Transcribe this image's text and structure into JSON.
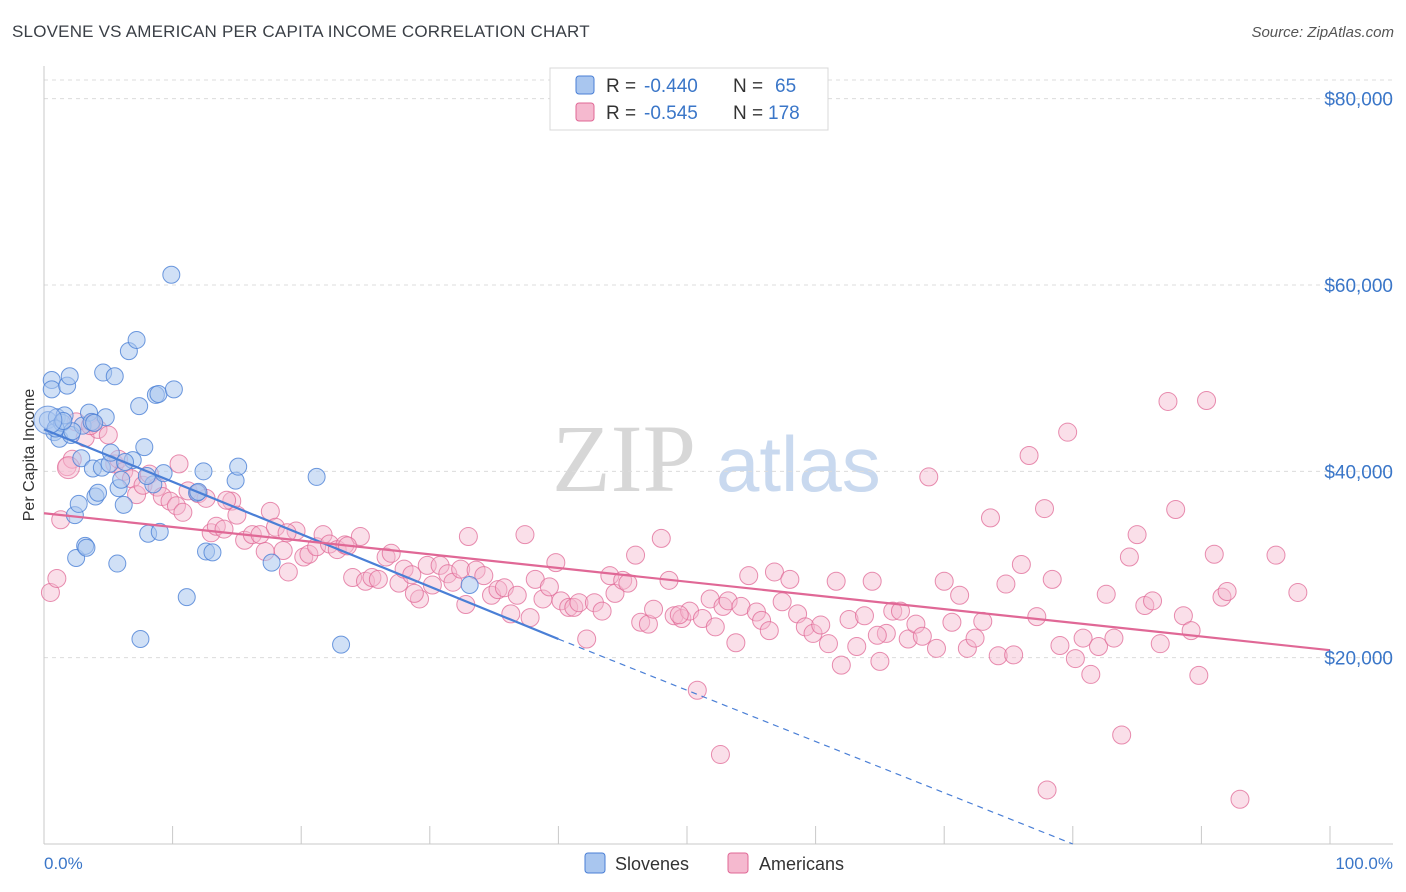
{
  "title": "SLOVENE VS AMERICAN PER CAPITA INCOME CORRELATION CHART",
  "source": "Source: ZipAtlas.com",
  "watermark": {
    "zip": "ZIP",
    "atlas": "atlas"
  },
  "colors": {
    "blue": "#4a7fd6",
    "blue_fill": "#a9c6ef",
    "pink": "#e06896",
    "pink_fill": "#f5b9cf",
    "axis_label": "#3a76c8",
    "grid": "#dcdcdc"
  },
  "legend_top": {
    "rows": [
      {
        "r_label": "R = ",
        "r_value": "-0.440",
        "n_label": "N = ",
        "n_value": "65"
      },
      {
        "r_label": "R = ",
        "r_value": "-0.545",
        "n_label": "N = ",
        "n_value": "178"
      }
    ]
  },
  "legend_bottom": [
    "Slovenes",
    "Americans"
  ],
  "chart_data": {
    "type": "scatter",
    "title": "SLOVENE VS AMERICAN PER CAPITA INCOME CORRELATION CHART",
    "xlabel": "",
    "ylabel": "Per Capita Income",
    "xlim": [
      0,
      100
    ],
    "ylim": [
      0,
      82000
    ],
    "x_tick_labels": [
      "0.0%",
      "100.0%"
    ],
    "y_ticks": [
      20000,
      40000,
      60000,
      80000
    ],
    "y_tick_labels": [
      "$20,000",
      "$40,000",
      "$60,000",
      "$80,000"
    ],
    "grid": true,
    "legend_position": "top-center and bottom-center",
    "series": [
      {
        "name": "Slovenes",
        "r": -0.44,
        "n": 65,
        "trend": {
          "x0": 0,
          "y0": 44500,
          "x1": 40,
          "y1": 22000,
          "dash_to_x": 80,
          "dash_to_y": 0
        },
        "points": [
          [
            0.3,
            45500
          ],
          [
            0.6,
            49800
          ],
          [
            0.6,
            48800
          ],
          [
            0.8,
            44200
          ],
          [
            1.0,
            45800
          ],
          [
            1.2,
            43500
          ],
          [
            1.4,
            45200
          ],
          [
            1.6,
            46000
          ],
          [
            1.8,
            49200
          ],
          [
            2.0,
            50200
          ],
          [
            2.1,
            43900
          ],
          [
            2.4,
            35300
          ],
          [
            2.5,
            30700
          ],
          [
            2.7,
            36500
          ],
          [
            2.9,
            41400
          ],
          [
            3.0,
            44900
          ],
          [
            3.2,
            32000
          ],
          [
            3.3,
            31800
          ],
          [
            3.5,
            46300
          ],
          [
            3.7,
            45300
          ],
          [
            3.8,
            40300
          ],
          [
            4.0,
            37300
          ],
          [
            4.2,
            37700
          ],
          [
            4.5,
            40400
          ],
          [
            4.6,
            50600
          ],
          [
            4.8,
            45800
          ],
          [
            5.1,
            40800
          ],
          [
            5.5,
            50200
          ],
          [
            5.7,
            30100
          ],
          [
            5.8,
            38200
          ],
          [
            6.0,
            39100
          ],
          [
            6.2,
            36400
          ],
          [
            6.6,
            52900
          ],
          [
            6.9,
            41200
          ],
          [
            7.2,
            54100
          ],
          [
            7.4,
            47000
          ],
          [
            7.5,
            22000
          ],
          [
            7.8,
            42600
          ],
          [
            8.1,
            33300
          ],
          [
            8.5,
            38600
          ],
          [
            8.7,
            48200
          ],
          [
            8.9,
            48300
          ],
          [
            9.0,
            33500
          ],
          [
            9.3,
            39800
          ],
          [
            9.9,
            61100
          ],
          [
            10.1,
            48800
          ],
          [
            11.1,
            26500
          ],
          [
            11.9,
            37700
          ],
          [
            12.4,
            40000
          ],
          [
            12.6,
            31400
          ],
          [
            13.1,
            31300
          ],
          [
            14.9,
            39000
          ],
          [
            15.1,
            40500
          ],
          [
            17.7,
            30200
          ],
          [
            21.2,
            39400
          ],
          [
            23.1,
            21400
          ],
          [
            33.1,
            27800
          ],
          [
            2.2,
            44300
          ],
          [
            3.9,
            45200
          ],
          [
            5.2,
            42000
          ],
          [
            6.3,
            41000
          ],
          [
            12.0,
            37800
          ],
          [
            8.0,
            39500
          ],
          [
            0.9,
            44600
          ],
          [
            1.5,
            45400
          ]
        ]
      },
      {
        "name": "Americans",
        "r": -0.545,
        "n": 178,
        "trend": {
          "x0": 0,
          "y0": 35500,
          "x1": 100,
          "y1": 20800
        },
        "points": [
          [
            0.5,
            27000
          ],
          [
            1.0,
            28500
          ],
          [
            1.3,
            34800
          ],
          [
            1.8,
            40500
          ],
          [
            2.5,
            45300
          ],
          [
            3.2,
            43600
          ],
          [
            3.8,
            45200
          ],
          [
            4.2,
            44500
          ],
          [
            5.0,
            43900
          ],
          [
            5.5,
            40800
          ],
          [
            5.8,
            41300
          ],
          [
            6.2,
            40000
          ],
          [
            6.8,
            39200
          ],
          [
            7.2,
            37500
          ],
          [
            7.7,
            38500
          ],
          [
            8.2,
            39700
          ],
          [
            8.8,
            38300
          ],
          [
            9.2,
            37300
          ],
          [
            9.8,
            36800
          ],
          [
            10.3,
            36300
          ],
          [
            10.8,
            35600
          ],
          [
            11.2,
            37900
          ],
          [
            12.0,
            37600
          ],
          [
            12.6,
            37100
          ],
          [
            13.0,
            33400
          ],
          [
            13.4,
            34100
          ],
          [
            14.0,
            33800
          ],
          [
            14.6,
            36800
          ],
          [
            15.0,
            35300
          ],
          [
            15.6,
            32600
          ],
          [
            16.2,
            33200
          ],
          [
            16.8,
            33200
          ],
          [
            17.2,
            31400
          ],
          [
            17.6,
            35700
          ],
          [
            18.0,
            34000
          ],
          [
            18.6,
            31500
          ],
          [
            19.0,
            29200
          ],
          [
            19.6,
            33600
          ],
          [
            20.2,
            30800
          ],
          [
            20.6,
            31100
          ],
          [
            21.2,
            31900
          ],
          [
            21.7,
            33200
          ],
          [
            22.2,
            32200
          ],
          [
            22.8,
            31600
          ],
          [
            23.4,
            32100
          ],
          [
            24.0,
            28600
          ],
          [
            24.6,
            33000
          ],
          [
            25.0,
            28200
          ],
          [
            25.5,
            28600
          ],
          [
            26.0,
            28400
          ],
          [
            26.6,
            30800
          ],
          [
            27.0,
            31200
          ],
          [
            27.6,
            28000
          ],
          [
            28.0,
            29500
          ],
          [
            28.6,
            28900
          ],
          [
            29.2,
            26300
          ],
          [
            29.8,
            29900
          ],
          [
            30.2,
            27800
          ],
          [
            30.8,
            29900
          ],
          [
            31.4,
            29000
          ],
          [
            31.8,
            28100
          ],
          [
            32.4,
            29500
          ],
          [
            32.8,
            25700
          ],
          [
            33.0,
            33000
          ],
          [
            33.6,
            29400
          ],
          [
            34.2,
            28800
          ],
          [
            34.8,
            26700
          ],
          [
            35.3,
            27300
          ],
          [
            35.8,
            27500
          ],
          [
            36.3,
            24700
          ],
          [
            36.8,
            26700
          ],
          [
            37.4,
            33200
          ],
          [
            37.8,
            24300
          ],
          [
            38.2,
            28400
          ],
          [
            38.8,
            26300
          ],
          [
            39.3,
            27600
          ],
          [
            39.8,
            30200
          ],
          [
            40.2,
            26100
          ],
          [
            40.8,
            25400
          ],
          [
            41.2,
            25400
          ],
          [
            41.6,
            25900
          ],
          [
            42.2,
            22000
          ],
          [
            42.8,
            25900
          ],
          [
            43.4,
            25000
          ],
          [
            44.0,
            28800
          ],
          [
            44.4,
            26900
          ],
          [
            45.0,
            28300
          ],
          [
            45.4,
            28000
          ],
          [
            46.0,
            31000
          ],
          [
            46.4,
            23800
          ],
          [
            47.0,
            23600
          ],
          [
            47.4,
            25200
          ],
          [
            48.0,
            32800
          ],
          [
            48.6,
            28300
          ],
          [
            49.0,
            24500
          ],
          [
            49.6,
            24200
          ],
          [
            50.2,
            25000
          ],
          [
            50.8,
            16500
          ],
          [
            51.2,
            24200
          ],
          [
            51.8,
            26300
          ],
          [
            52.2,
            23300
          ],
          [
            52.8,
            25500
          ],
          [
            53.2,
            26100
          ],
          [
            53.8,
            21600
          ],
          [
            54.2,
            25500
          ],
          [
            54.8,
            28800
          ],
          [
            55.4,
            24900
          ],
          [
            55.8,
            24000
          ],
          [
            56.4,
            22900
          ],
          [
            56.8,
            29200
          ],
          [
            57.4,
            26000
          ],
          [
            58.0,
            28400
          ],
          [
            58.6,
            24700
          ],
          [
            59.2,
            23300
          ],
          [
            59.8,
            22600
          ],
          [
            60.4,
            23500
          ],
          [
            61.0,
            21500
          ],
          [
            61.6,
            28200
          ],
          [
            62.0,
            19200
          ],
          [
            62.6,
            24100
          ],
          [
            63.2,
            21200
          ],
          [
            63.8,
            24500
          ],
          [
            64.4,
            28200
          ],
          [
            65.0,
            19600
          ],
          [
            65.5,
            22600
          ],
          [
            66.0,
            25000
          ],
          [
            66.6,
            25000
          ],
          [
            67.2,
            22000
          ],
          [
            67.8,
            23600
          ],
          [
            68.3,
            22300
          ],
          [
            68.8,
            39400
          ],
          [
            69.4,
            21000
          ],
          [
            70.0,
            28200
          ],
          [
            70.6,
            23800
          ],
          [
            71.2,
            26700
          ],
          [
            71.8,
            21000
          ],
          [
            72.4,
            22100
          ],
          [
            73.0,
            23900
          ],
          [
            73.6,
            35000
          ],
          [
            74.2,
            20200
          ],
          [
            74.8,
            27900
          ],
          [
            75.4,
            20300
          ],
          [
            76.0,
            30000
          ],
          [
            76.6,
            41700
          ],
          [
            77.2,
            24400
          ],
          [
            77.8,
            36000
          ],
          [
            78.4,
            28400
          ],
          [
            79.0,
            21300
          ],
          [
            79.6,
            44200
          ],
          [
            80.2,
            19900
          ],
          [
            80.8,
            22100
          ],
          [
            81.4,
            18200
          ],
          [
            82.0,
            21200
          ],
          [
            82.6,
            26800
          ],
          [
            83.2,
            22100
          ],
          [
            83.8,
            11700
          ],
          [
            84.4,
            30800
          ],
          [
            85.0,
            33200
          ],
          [
            85.6,
            25600
          ],
          [
            86.2,
            26100
          ],
          [
            86.8,
            21500
          ],
          [
            87.4,
            47500
          ],
          [
            88.0,
            35900
          ],
          [
            88.6,
            24500
          ],
          [
            89.2,
            22900
          ],
          [
            89.8,
            18100
          ],
          [
            90.4,
            47600
          ],
          [
            91.0,
            31100
          ],
          [
            91.6,
            26500
          ],
          [
            92.0,
            27100
          ],
          [
            10.5,
            40800
          ],
          [
            14.2,
            36900
          ],
          [
            18.9,
            33400
          ],
          [
            23.6,
            32000
          ],
          [
            28.8,
            26900
          ],
          [
            49.4,
            24600
          ],
          [
            52.6,
            9600
          ],
          [
            64.8,
            22400
          ],
          [
            78.0,
            5800
          ],
          [
            93.0,
            4800
          ],
          [
            97.5,
            27000
          ],
          [
            95.8,
            31000
          ],
          [
            2.2,
            41300
          ],
          [
            3.6,
            44900
          ]
        ]
      }
    ]
  }
}
